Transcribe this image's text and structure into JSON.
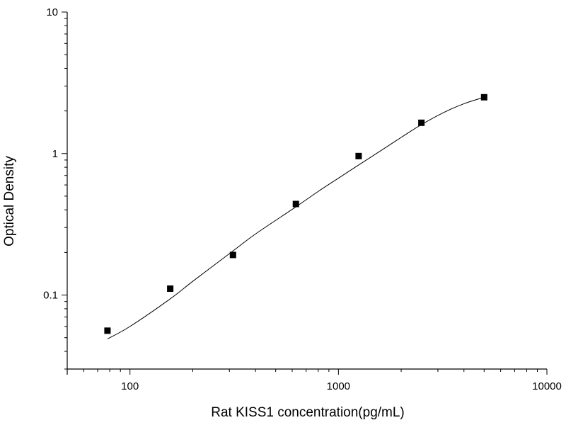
{
  "chart_data": {
    "type": "scatter",
    "xlabel": "Rat KISS1 concentration(pg/mL)",
    "ylabel": "Optical Density",
    "xscale": "log",
    "yscale": "log",
    "xlim": [
      50,
      10000
    ],
    "ylim": [
      0.03,
      10
    ],
    "x_tick_labels": [
      "100",
      "1000",
      "10000"
    ],
    "y_tick_labels": [
      "0.1",
      "1",
      "10"
    ],
    "grid": false,
    "legend": "none",
    "points": {
      "x": [
        78,
        156,
        312,
        625,
        1250,
        2500,
        5000
      ],
      "y": [
        0.056,
        0.111,
        0.192,
        0.44,
        0.96,
        1.65,
        2.5
      ]
    },
    "fit_curve": {
      "x": [
        78,
        100,
        156,
        200,
        312,
        400,
        625,
        800,
        1000,
        1250,
        1600,
        2000,
        2500,
        3200,
        4000,
        5000
      ],
      "y": [
        0.049,
        0.06,
        0.094,
        0.125,
        0.205,
        0.27,
        0.42,
        0.54,
        0.67,
        0.83,
        1.05,
        1.3,
        1.6,
        1.95,
        2.25,
        2.5
      ]
    },
    "colors": {
      "marker": "#000000",
      "curve": "#000000",
      "axis": "#000000"
    }
  }
}
